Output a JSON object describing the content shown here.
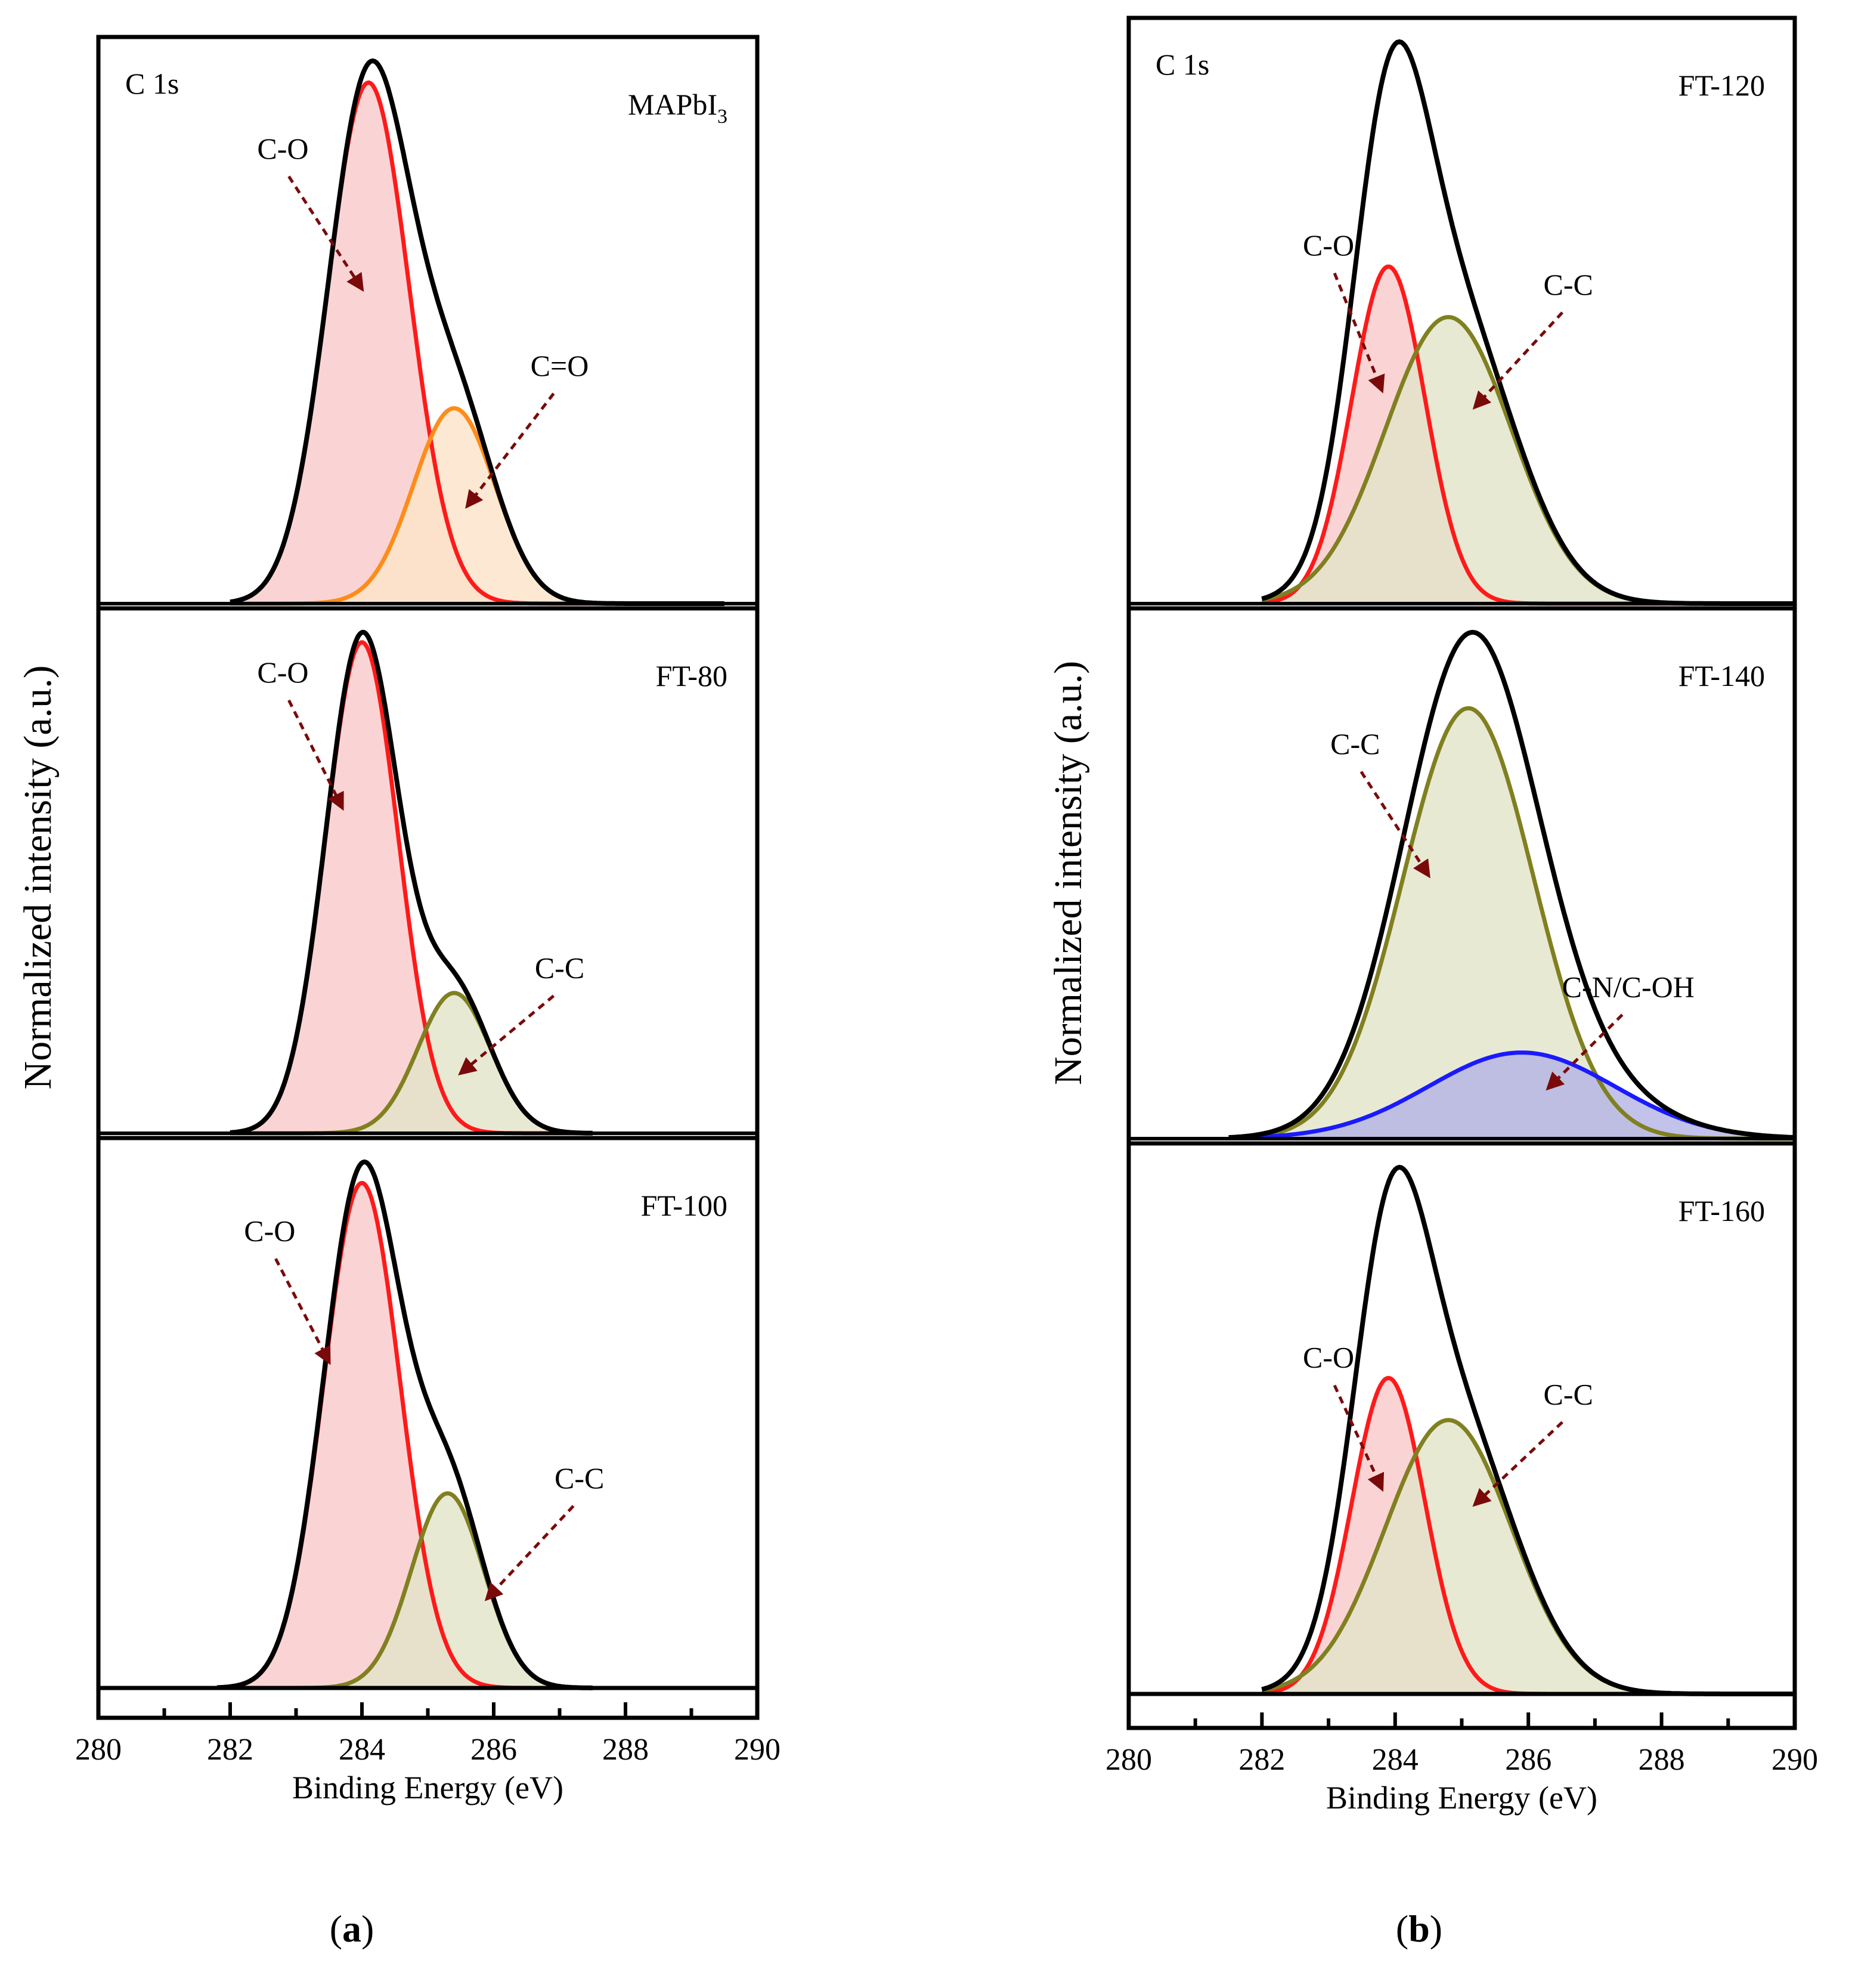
{
  "figure": {
    "panel_a_caption": "a",
    "panel_b_caption": "b"
  },
  "colors": {
    "frame": "#000000",
    "envelope": "#000000",
    "c_o": "#ff1a1a",
    "c_o_fill": "#f9c9c9",
    "c_eq_o": "#ff8c1a",
    "c_eq_o_fill": "#fde4c8",
    "c_c": "#808020",
    "c_c_fill": "#e2e3c8",
    "c_n": "#1a1aff",
    "c_n_fill": "#b3b3e6",
    "arrow": "#7a0a0a"
  },
  "chart_data": [
    {
      "type": "area",
      "panel": "a",
      "xlabel": "Binding Energy (eV)",
      "ylabel": "Normalized intensity (a.u.)",
      "xlim": [
        280,
        290
      ],
      "xticks": [
        "280",
        "282",
        "284",
        "286",
        "288",
        "290"
      ],
      "subplots": [
        {
          "name": "MAPbI3",
          "label_main": "MAPbI",
          "label_sub": "3",
          "corner_label": "C 1s",
          "x_range": [
            282,
            289.5
          ],
          "series": [
            {
              "name": "C-O",
              "center": 284.1,
              "height": 0.96,
              "sigma": 0.62,
              "color_key": "c_o",
              "arrow_label_x": 282.8,
              "arrow_label_y": 0.82,
              "arrow_to_x": 284.0,
              "arrow_to_y": 0.58
            },
            {
              "name": "C=O",
              "center": 285.4,
              "height": 0.36,
              "sigma": 0.62,
              "color_key": "c_eq_o",
              "arrow_label_x": 287.0,
              "arrow_label_y": 0.42,
              "arrow_to_x": 285.6,
              "arrow_to_y": 0.18
            }
          ],
          "envelope_peak": 1.0
        },
        {
          "name": "FT-80",
          "label_main": "FT-80",
          "label_sub": "",
          "corner_label": "",
          "x_range": [
            282,
            287.5
          ],
          "series": [
            {
              "name": "C-O",
              "center": 284.0,
              "height": 0.98,
              "sigma": 0.55,
              "color_key": "c_o",
              "arrow_label_x": 282.8,
              "arrow_label_y": 0.9,
              "arrow_to_x": 283.7,
              "arrow_to_y": 0.65
            },
            {
              "name": "C-C",
              "center": 285.4,
              "height": 0.28,
              "sigma": 0.55,
              "color_key": "c_c",
              "arrow_label_x": 287.0,
              "arrow_label_y": 0.31,
              "arrow_to_x": 285.5,
              "arrow_to_y": 0.12
            }
          ],
          "envelope_peak": 1.0
        },
        {
          "name": "FT-100",
          "label_main": "FT-100",
          "label_sub": "",
          "corner_label": "",
          "x_range": [
            281.8,
            287.5
          ],
          "series": [
            {
              "name": "C-O",
              "center": 284.0,
              "height": 0.96,
              "sigma": 0.58,
              "color_key": "c_o",
              "arrow_label_x": 282.6,
              "arrow_label_y": 0.85,
              "arrow_to_x": 283.5,
              "arrow_to_y": 0.62
            },
            {
              "name": "C-C",
              "center": 285.3,
              "height": 0.37,
              "sigma": 0.55,
              "color_key": "c_c",
              "arrow_label_x": 287.3,
              "arrow_label_y": 0.38,
              "arrow_to_x": 285.9,
              "arrow_to_y": 0.17
            }
          ],
          "envelope_peak": 1.0
        }
      ]
    },
    {
      "type": "area",
      "panel": "b",
      "xlabel": "Binding Energy (eV)",
      "ylabel": "Normalized intensity (a.u.)",
      "xlim": [
        280,
        290
      ],
      "xticks": [
        "280",
        "282",
        "284",
        "286",
        "288",
        "290"
      ],
      "subplots": [
        {
          "name": "FT-120",
          "label_main": "FT-120",
          "label_sub": "",
          "corner_label": "C 1s",
          "x_range": [
            282,
            290
          ],
          "series": [
            {
              "name": "C-O",
              "center": 283.9,
              "height": 0.6,
              "sigma": 0.55,
              "color_key": "c_o",
              "arrow_label_x": 283.0,
              "arrow_label_y": 0.62,
              "arrow_to_x": 283.8,
              "arrow_to_y": 0.38
            },
            {
              "name": "C-C",
              "center": 284.8,
              "height": 0.51,
              "sigma": 0.95,
              "color_key": "c_c",
              "arrow_label_x": 286.6,
              "arrow_label_y": 0.55,
              "arrow_to_x": 285.2,
              "arrow_to_y": 0.35
            }
          ],
          "envelope_peak": 1.0
        },
        {
          "name": "FT-140",
          "label_main": "FT-140",
          "label_sub": "",
          "corner_label": "",
          "x_range": [
            281.5,
            290
          ],
          "series": [
            {
              "name": "C-C",
              "center": 285.1,
              "height": 0.85,
              "sigma": 0.98,
              "color_key": "c_c",
              "arrow_label_x": 283.4,
              "arrow_label_y": 0.76,
              "arrow_to_x": 284.5,
              "arrow_to_y": 0.52
            },
            {
              "name": "C-N/C-OH",
              "center": 285.9,
              "height": 0.17,
              "sigma": 1.4,
              "color_key": "c_n",
              "arrow_label_x": 287.5,
              "arrow_label_y": 0.28,
              "arrow_to_x": 286.3,
              "arrow_to_y": 0.1
            }
          ],
          "envelope_peak": 1.0
        },
        {
          "name": "FT-160",
          "label_main": "FT-160",
          "label_sub": "",
          "corner_label": "",
          "x_range": [
            282,
            290
          ],
          "series": [
            {
              "name": "C-O",
              "center": 283.9,
              "height": 0.6,
              "sigma": 0.55,
              "color_key": "c_o",
              "arrow_label_x": 283.0,
              "arrow_label_y": 0.62,
              "arrow_to_x": 283.8,
              "arrow_to_y": 0.39
            },
            {
              "name": "C-C",
              "center": 284.8,
              "height": 0.52,
              "sigma": 0.95,
              "color_key": "c_c",
              "arrow_label_x": 286.6,
              "arrow_label_y": 0.55,
              "arrow_to_x": 285.2,
              "arrow_to_y": 0.36
            }
          ],
          "envelope_peak": 1.0
        }
      ]
    }
  ]
}
